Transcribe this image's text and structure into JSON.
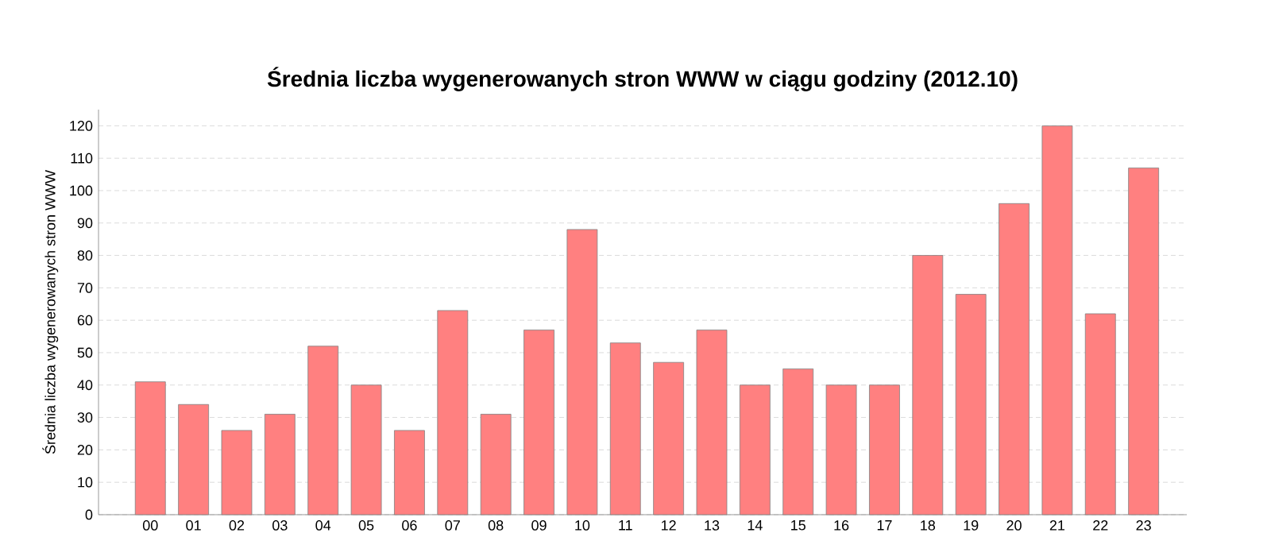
{
  "chart_data": {
    "type": "bar",
    "title": "Średnia liczba wygenerowanych stron WWW w ciągu godziny (2012.10)",
    "ylabel": "Średnia liczba wygenerowanych stron WWW",
    "categories": [
      "00",
      "01",
      "02",
      "03",
      "04",
      "05",
      "06",
      "07",
      "08",
      "09",
      "10",
      "11",
      "12",
      "13",
      "14",
      "15",
      "16",
      "17",
      "18",
      "19",
      "20",
      "21",
      "22",
      "23"
    ],
    "values": [
      41,
      34,
      26,
      31,
      52,
      40,
      26,
      63,
      31,
      57,
      88,
      53,
      47,
      57,
      40,
      45,
      40,
      40,
      80,
      68,
      96,
      120,
      62,
      107
    ],
    "color": "#ff8080",
    "ylim": [
      0,
      125
    ],
    "yticks": [
      0,
      10,
      20,
      30,
      40,
      50,
      60,
      70,
      80,
      90,
      100,
      110,
      120
    ],
    "grid": "y"
  }
}
